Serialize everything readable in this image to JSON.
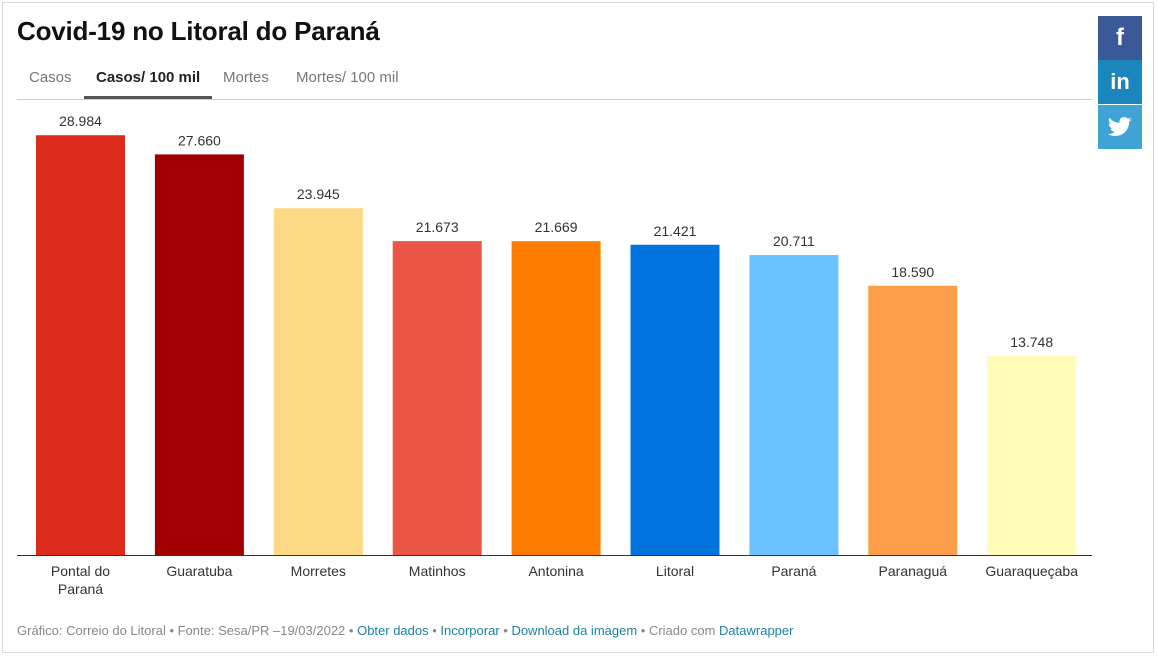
{
  "title": "Covid-19 no Litoral do Paraná",
  "tabs": [
    {
      "label": "Casos",
      "active": false
    },
    {
      "label": "Casos/ 100 mil",
      "active": true
    },
    {
      "label": "Mortes",
      "active": false
    },
    {
      "label": "Mortes/ 100 mil",
      "active": false
    }
  ],
  "share": {
    "facebook_glyph": "f",
    "linkedin_glyph": "in",
    "twitter_icon": "twitter-bird-icon"
  },
  "chart_data": {
    "type": "bar",
    "categories": [
      "Pontal do Paraná",
      "Guaratuba",
      "Morretes",
      "Matinhos",
      "Antonina",
      "Litoral",
      "Paraná",
      "Paranaguá",
      "Guaraqueçaba"
    ],
    "category_lines": [
      [
        "Pontal do",
        "Paraná"
      ],
      [
        "Guaratuba"
      ],
      [
        "Morretes"
      ],
      [
        "Matinhos"
      ],
      [
        "Antonina"
      ],
      [
        "Litoral"
      ],
      [
        "Paraná"
      ],
      [
        "Paranaguá"
      ],
      [
        "Guaraqueçaba"
      ]
    ],
    "values": [
      28984,
      27660,
      23945,
      21673,
      21669,
      21421,
      20711,
      18590,
      13748
    ],
    "value_labels": [
      "28.984",
      "27.660",
      "23.945",
      "21.673",
      "21.669",
      "21.421",
      "20.711",
      "18.590",
      "13.748"
    ],
    "colors": [
      "#dc2a1b",
      "#a10000",
      "#fdd985",
      "#eb5545",
      "#fe7d00",
      "#0073df",
      "#6cc2fe",
      "#fd9f4a",
      "#fffbb8"
    ],
    "ylim": [
      0,
      29000
    ],
    "grid": false,
    "legend": "none"
  },
  "footer": {
    "prefix": "Gráfico: Correio do Litoral • Fonte: Sesa/PR –19/03/2022 • ",
    "link_get_data": "Obter dados",
    "sep1": " • ",
    "link_embed": "Incorporar",
    "sep2": " • ",
    "link_download": "Download da imagem",
    "sep3": " • Criado com ",
    "link_datawrapper": "Datawrapper"
  }
}
